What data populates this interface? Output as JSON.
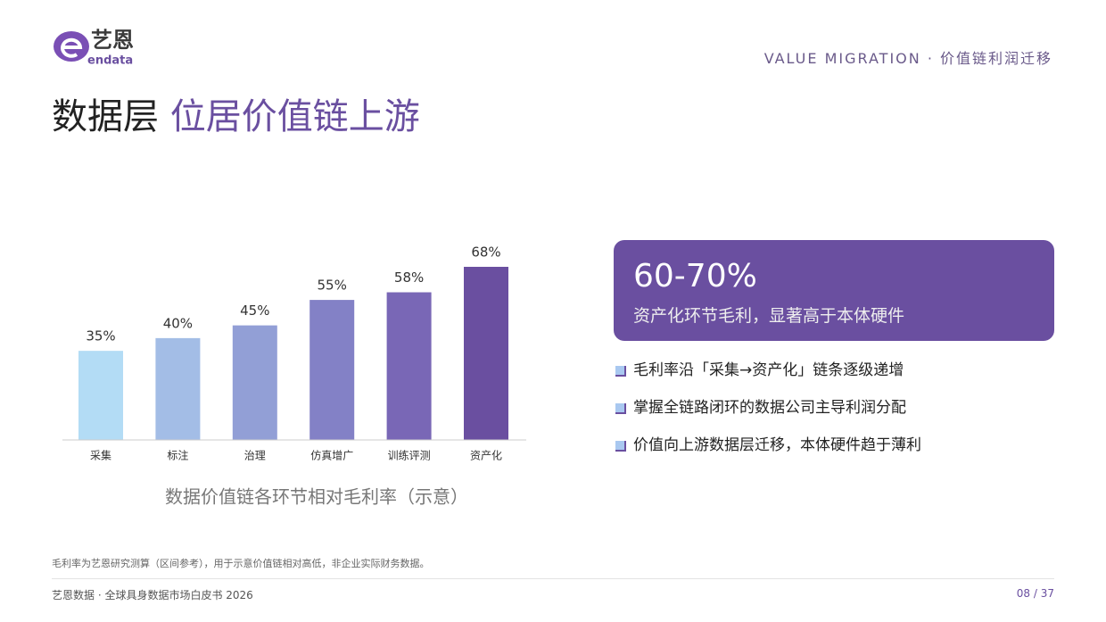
{
  "logo": {
    "cn": "艺恩",
    "en": "endata"
  },
  "header": {
    "tag": "VALUE MIGRATION · 价值链利润迁移",
    "title": [
      "数据层",
      "位居价值链上游"
    ]
  },
  "chart_data": {
    "type": "bar",
    "categories": [
      "采集",
      "标注",
      "治理",
      "仿真增广",
      "训练评测",
      "资产化"
    ],
    "values": [
      35,
      40,
      45,
      55,
      58,
      68
    ],
    "value_labels": [
      "35%",
      "40%",
      "45%",
      "55%",
      "58%",
      "68%"
    ],
    "colors": [
      "#b3dcf5",
      "#a3bde6",
      "#929fd6",
      "#8381c6",
      "#7967b6",
      "#6a4fa0"
    ],
    "caption": "数据价值链各环节相对毛利率（示意）"
  },
  "callout": {
    "headline": "60-70%",
    "text": "资产化环节毛利，显著高于本体硬件"
  },
  "bullets": [
    "毛利率沿「采集→资产化」链条逐级递增",
    "掌握全链路闭环的数据公司主导利润分配",
    "价值向上游数据层迁移，本体硬件趋于薄利"
  ],
  "footnote": "毛利率为艺恩研究测算（区间参考），用于示意价值链相对高低，非企业实际财务数据。",
  "footer": {
    "left": "艺恩数据 · 全球具身数据市场白皮书 2026",
    "page": "08 / 37"
  }
}
